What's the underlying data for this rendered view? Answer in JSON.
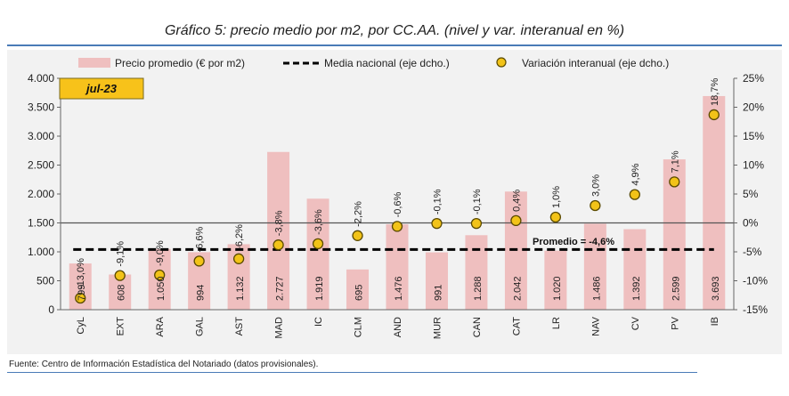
{
  "title": "Gráfico 5: precio medio por m2, por CC.AA. (nivel y var. interanual en %)",
  "source": "Fuente: Centro de Información Estadística del Notariado (datos provisionales).",
  "colors": {
    "bar": "#efbfbf",
    "dot": "#f2c318",
    "dot_stroke": "#5a4a00",
    "panel_bg": "#f2f2f2",
    "badge_bg": "#f7c21a"
  },
  "chart_data": {
    "type": "bar",
    "period_badge": "jul-23",
    "categories": [
      "CyL",
      "EXT",
      "ARA",
      "GAL",
      "AST",
      "MAD",
      "IC",
      "CLM",
      "AND",
      "MUR",
      "CAN",
      "CAT",
      "LR",
      "NAV",
      "CV",
      "PV",
      "IB"
    ],
    "bar_labels": [
      "799",
      "608",
      "1.050",
      "994",
      "1.132",
      "2.727",
      "1.919",
      "695",
      "1.476",
      "991",
      "1.288",
      "2.042",
      "1.020",
      "1.486",
      "1.392",
      "2.599",
      "3.693"
    ],
    "series": [
      {
        "name": "Precio promedio (€ por m2)",
        "type": "bar",
        "axis": "left",
        "values": [
          799,
          608,
          1050,
          994,
          1132,
          2727,
          1919,
          695,
          1476,
          991,
          1288,
          2042,
          1020,
          1486,
          1392,
          2599,
          3693
        ]
      },
      {
        "name": "Variación interanual (eje dcho.)",
        "type": "scatter",
        "axis": "right",
        "values": [
          -13.0,
          -9.1,
          -9.0,
          -6.6,
          -6.2,
          -3.8,
          -3.6,
          -2.2,
          -0.6,
          -0.1,
          -0.1,
          0.4,
          1.0,
          3.0,
          4.9,
          7.1,
          18.7
        ],
        "labels": [
          "-13,0%",
          "-9,1%",
          "-9,0%",
          "-6,6%",
          "-6,2%",
          "-3,8%",
          "-3,6%",
          "-2,2%",
          "-0,6%",
          "-0,1%",
          "-0,1%",
          "0,4%",
          "1,0%",
          "3,0%",
          "4,9%",
          "7,1%",
          "18,7%"
        ]
      },
      {
        "name": "Media nacional (eje dcho.)",
        "type": "hline",
        "axis": "right",
        "value": -4.6
      }
    ],
    "annotation": "Promedio = -4,6%",
    "y_left": {
      "range": [
        0,
        4000
      ],
      "ticks": [
        0,
        500,
        1000,
        1500,
        2000,
        2500,
        3000,
        3500,
        4000
      ],
      "tick_labels": [
        "0",
        "500",
        "1.000",
        "1.500",
        "2.000",
        "2.500",
        "3.000",
        "3.500",
        "4.000"
      ]
    },
    "y_right": {
      "range": [
        -15,
        25
      ],
      "ticks": [
        -15,
        -10,
        -5,
        0,
        5,
        10,
        15,
        20,
        25
      ],
      "tick_labels": [
        "-15%",
        "-10%",
        "-5%",
        "0%",
        "5%",
        "10%",
        "15%",
        "20%",
        "25%"
      ]
    },
    "legend_position": "top"
  }
}
